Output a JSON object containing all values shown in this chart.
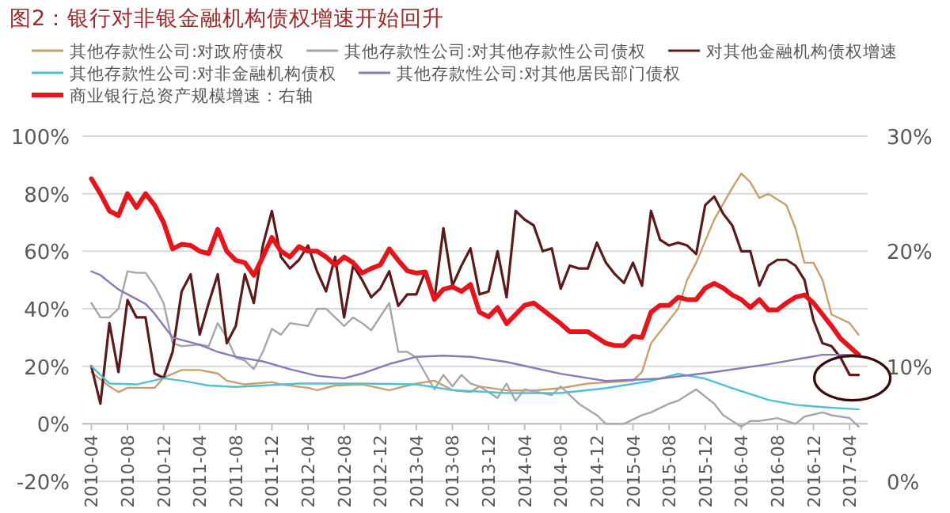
{
  "chart_data": {
    "type": "line",
    "title": "图2：银行对非银金融机构债权增速开始回升",
    "x": [
      "2010-04",
      "2010-05",
      "2010-06",
      "2010-07",
      "2010-08",
      "2010-09",
      "2010-10",
      "2010-11",
      "2010-12",
      "2011-01",
      "2011-02",
      "2011-03",
      "2011-04",
      "2011-05",
      "2011-06",
      "2011-07",
      "2011-08",
      "2011-09",
      "2011-10",
      "2011-11",
      "2011-12",
      "2012-01",
      "2012-02",
      "2012-03",
      "2012-04",
      "2012-05",
      "2012-06",
      "2012-07",
      "2012-08",
      "2012-09",
      "2012-10",
      "2012-11",
      "2012-12",
      "2013-01",
      "2013-02",
      "2013-03",
      "2013-04",
      "2013-05",
      "2013-06",
      "2013-07",
      "2013-08",
      "2013-09",
      "2013-10",
      "2013-11",
      "2013-12",
      "2014-01",
      "2014-02",
      "2014-03",
      "2014-04",
      "2014-05",
      "2014-06",
      "2014-07",
      "2014-08",
      "2014-09",
      "2014-10",
      "2014-11",
      "2014-12",
      "2015-01",
      "2015-02",
      "2015-03",
      "2015-04",
      "2015-05",
      "2015-06",
      "2015-07",
      "2015-08",
      "2015-09",
      "2015-10",
      "2015-11",
      "2015-12",
      "2016-01",
      "2016-02",
      "2016-03",
      "2016-04",
      "2016-05",
      "2016-06",
      "2016-07",
      "2016-08",
      "2016-09",
      "2016-10",
      "2016-11",
      "2016-12",
      "2017-01",
      "2017-02",
      "2017-03",
      "2017-04",
      "2017-05"
    ],
    "xlim": [
      "2010-03",
      "2017-06"
    ],
    "xticks": [
      "2010-04",
      "2010-08",
      "2010-12",
      "2011-04",
      "2011-08",
      "2011-12",
      "2012-04",
      "2012-08",
      "2012-12",
      "2013-04",
      "2013-08",
      "2013-12",
      "2014-04",
      "2014-08",
      "2014-12",
      "2015-04",
      "2015-08",
      "2015-12",
      "2016-04",
      "2016-08",
      "2016-12",
      "2017-04"
    ],
    "ylim": [
      -20,
      100
    ],
    "yticks": [
      {
        "value": -20,
        "label": "-20%"
      },
      {
        "value": 0,
        "label": "0%"
      },
      {
        "value": 20,
        "label": "20%"
      },
      {
        "value": 40,
        "label": "40%"
      },
      {
        "value": 60,
        "label": "60%"
      },
      {
        "value": 80,
        "label": "80%"
      },
      {
        "value": 100,
        "label": "100%"
      }
    ],
    "y2lim": [
      0,
      30
    ],
    "y2ticks": [
      {
        "value": 0,
        "label": "0%"
      },
      {
        "value": 10,
        "label": "10%"
      },
      {
        "value": 20,
        "label": "20%"
      },
      {
        "value": 30,
        "label": "30%"
      }
    ],
    "grid": "y",
    "legend": "top",
    "series": [
      {
        "name": "其他存款性公司:对政府债权",
        "color": "#c8a070",
        "x": [
          "2010-04",
          "2010-06",
          "2010-07",
          "2010-08",
          "2010-11",
          "2010-12",
          "2011-02",
          "2011-04",
          "2011-06",
          "2011-07",
          "2011-09",
          "2011-12",
          "2012-01",
          "2012-04",
          "2012-05",
          "2012-07",
          "2012-10",
          "2013-01",
          "2013-04",
          "2013-06",
          "2013-08",
          "2013-10",
          "2013-11",
          "2014-02",
          "2014-05",
          "2014-08",
          "2014-11",
          "2015-04",
          "2015-05",
          "2015-06",
          "2015-09",
          "2015-10",
          "2015-11",
          "2016-01",
          "2016-03",
          "2016-04",
          "2016-05",
          "2016-06",
          "2016-07",
          "2016-09",
          "2016-10",
          "2016-11",
          "2016-12",
          "2017-01",
          "2017-02",
          "2017-04",
          "2017-05"
        ],
        "values": [
          18,
          13,
          11,
          12.5,
          12.5,
          16,
          18.7,
          18.7,
          17.5,
          15,
          13.7,
          14.5,
          13.7,
          12.5,
          11.7,
          13.3,
          13.7,
          11.7,
          14,
          15,
          11.7,
          11,
          13,
          11.6,
          11.6,
          12.4,
          14,
          15,
          18,
          28,
          40,
          50,
          56,
          71,
          82,
          87,
          84,
          78.5,
          80,
          76,
          68,
          56,
          56,
          50,
          38,
          35,
          31
        ]
      },
      {
        "name": "其他存款性公司:对其他存款性公司债权",
        "color": "#a6a6a6",
        "x": [
          "2010-04",
          "2010-05",
          "2010-06",
          "2010-07",
          "2010-08",
          "2010-09",
          "2010-10",
          "2010-11",
          "2010-12",
          "2011-01",
          "2011-02",
          "2011-04",
          "2011-05",
          "2011-06",
          "2011-07",
          "2011-08",
          "2011-09",
          "2011-10",
          "2011-11",
          "2011-12",
          "2012-01",
          "2012-02",
          "2012-04",
          "2012-05",
          "2012-06",
          "2012-07",
          "2012-08",
          "2012-09",
          "2012-10",
          "2012-11",
          "2013-01",
          "2013-02",
          "2013-03",
          "2013-04",
          "2013-06",
          "2013-07",
          "2013-08",
          "2013-09",
          "2013-10",
          "2013-11",
          "2014-01",
          "2014-02",
          "2014-03",
          "2014-04",
          "2014-07",
          "2014-08",
          "2014-10",
          "2014-12",
          "2015-01",
          "2015-03",
          "2015-05",
          "2015-06",
          "2015-08",
          "2015-09",
          "2015-10",
          "2015-11",
          "2016-01",
          "2016-02",
          "2016-04",
          "2016-05",
          "2016-06",
          "2016-08",
          "2016-10",
          "2016-11",
          "2017-01",
          "2017-02",
          "2017-04",
          "2017-05"
        ],
        "values": [
          42,
          37,
          37,
          40,
          53,
          52.5,
          52.5,
          48,
          42,
          28,
          27,
          27.5,
          27,
          35,
          30,
          23,
          22,
          19,
          25,
          33,
          31,
          35,
          34,
          40,
          40,
          37,
          34,
          37,
          35,
          32.5,
          42,
          25,
          25,
          23,
          12,
          17,
          13,
          17,
          14,
          13,
          9,
          14,
          8,
          12,
          10,
          13,
          7,
          3,
          0,
          0,
          3,
          4,
          7,
          8,
          10,
          12,
          7,
          3,
          -1,
          1,
          1,
          2,
          0,
          2.5,
          4,
          3,
          2,
          -1
        ]
      },
      {
        "name": "对其他金融机构债权增速",
        "color": "#5c1a1b",
        "values": [
          20,
          7,
          35,
          18,
          43,
          37,
          37,
          17.5,
          16,
          25,
          46,
          52,
          31,
          42,
          52,
          28,
          34,
          52,
          42,
          62,
          74,
          58,
          54,
          57,
          62,
          53,
          46,
          58,
          37,
          55,
          50,
          44,
          47,
          53,
          41,
          45,
          45,
          53,
          43,
          68,
          48,
          55,
          61,
          45,
          46,
          60,
          44,
          74,
          71,
          69,
          60,
          61,
          47,
          55,
          54,
          54,
          63,
          56,
          52,
          49,
          56,
          48,
          74,
          64,
          62,
          63,
          62,
          59,
          76,
          79,
          73,
          69,
          60,
          60,
          48,
          55,
          57,
          57,
          55,
          50,
          36,
          28,
          27,
          23,
          17,
          17
        ]
      },
      {
        "name": "其他存款性公司:对非金融机构债权",
        "color": "#4fc1d6",
        "x": [
          "2010-04",
          "2010-06",
          "2010-09",
          "2010-12",
          "2011-02",
          "2011-05",
          "2011-08",
          "2011-11",
          "2012-03",
          "2012-06",
          "2012-10",
          "2013-04",
          "2013-08",
          "2014-02",
          "2014-08",
          "2015-01",
          "2015-06",
          "2015-09",
          "2015-12",
          "2016-03",
          "2016-07",
          "2016-10",
          "2017-01",
          "2017-05"
        ],
        "values": [
          20,
          14,
          13.7,
          15.8,
          15,
          13.3,
          12.8,
          13.3,
          14,
          14,
          14,
          13.7,
          11.7,
          10.7,
          10.7,
          12.4,
          14.9,
          17.4,
          15.7,
          12.4,
          8.3,
          6.6,
          5.8,
          5
        ]
      },
      {
        "name": "其他存款性公司:对其他居民部门债权",
        "color": "#8a78b8",
        "x": [
          "2010-04",
          "2010-05",
          "2010-07",
          "2010-10",
          "2010-11",
          "2011-01",
          "2011-04",
          "2011-06",
          "2011-08",
          "2011-11",
          "2012-02",
          "2012-05",
          "2012-08",
          "2012-10",
          "2013-01",
          "2013-04",
          "2013-07",
          "2013-10",
          "2014-02",
          "2014-08",
          "2015-01",
          "2015-07",
          "2016-01",
          "2016-07",
          "2017-01",
          "2017-05"
        ],
        "values": [
          53,
          51.7,
          46.7,
          41.7,
          38.3,
          30,
          27.5,
          25,
          23.3,
          21.7,
          19,
          16.7,
          15.8,
          17.5,
          20.8,
          23.3,
          23.7,
          23.3,
          21.5,
          17.4,
          14.9,
          15.7,
          18,
          20.7,
          24,
          24
        ]
      },
      {
        "name": "商业银行总资产规模增速：右轴",
        "color": "#e8141c",
        "axis": "y2",
        "values": [
          26.3,
          25,
          23.5,
          23.1,
          25,
          23.8,
          25,
          24,
          22.5,
          20.2,
          20.6,
          20.5,
          20,
          19.8,
          21.9,
          20,
          19.2,
          19,
          17.9,
          19.5,
          21.2,
          20,
          19.5,
          20.4,
          20,
          20,
          19.5,
          18.8,
          19.5,
          19,
          18.1,
          18.5,
          18.8,
          20.2,
          19.2,
          18.3,
          18.1,
          18.2,
          15.8,
          16.7,
          16.9,
          16.5,
          17.1,
          14.7,
          14.3,
          15.1,
          13.7,
          14.5,
          15.3,
          15.5,
          14.9,
          14.3,
          13.7,
          13,
          13,
          13,
          12.5,
          12,
          11.8,
          11.8,
          12.6,
          12.5,
          14.7,
          15.3,
          15.3,
          16,
          15.8,
          15.8,
          16.8,
          17.2,
          16.8,
          16.2,
          15.8,
          15.1,
          15.8,
          14.9,
          14.9,
          15.5,
          16,
          16.2,
          15.5,
          14.5,
          13.5,
          12.4,
          11.7,
          11
        ]
      }
    ]
  }
}
